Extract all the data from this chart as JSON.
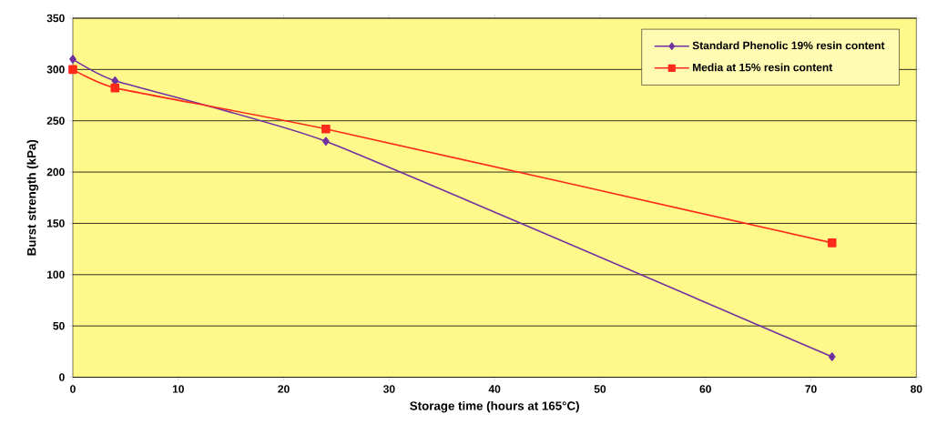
{
  "chart_data": {
    "type": "line",
    "xlabel": "Storage time (hours at 165°C)",
    "ylabel": "Burst strength (kPa)",
    "xlim": [
      0,
      80
    ],
    "xticks": [
      0,
      10,
      20,
      30,
      40,
      50,
      60,
      70,
      80
    ],
    "ylim": [
      0,
      350
    ],
    "yticks": [
      0,
      50,
      100,
      150,
      200,
      250,
      300,
      350
    ],
    "grid": "y",
    "legend": "top right",
    "series": [
      {
        "name": "Standard Phenolic 19% resin content",
        "color": "#7030a0",
        "marker": "diamond",
        "x": [
          0,
          4,
          24,
          72
        ],
        "values": [
          310,
          289,
          230,
          20
        ]
      },
      {
        "name": "Media at 15% resin content",
        "color": "#ff2a1a",
        "marker": "square",
        "x": [
          0,
          4,
          24,
          72
        ],
        "values": [
          300,
          282,
          242,
          131
        ]
      }
    ]
  }
}
